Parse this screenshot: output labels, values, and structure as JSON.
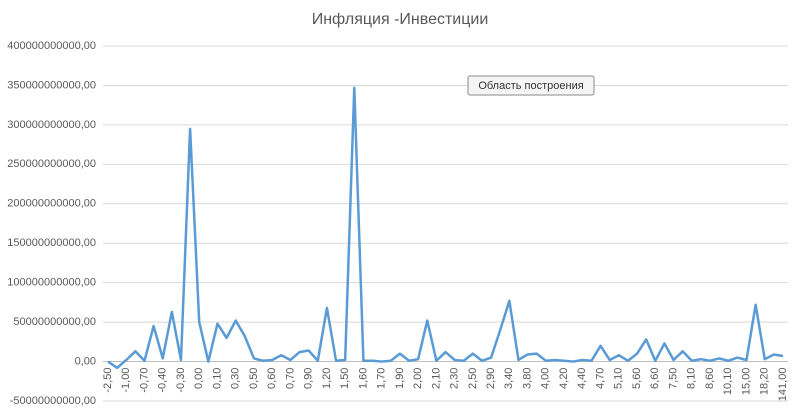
{
  "chart_data": {
    "type": "line",
    "title": "Инфляция -Инвестиции",
    "tooltip": "Область построения",
    "categories": [
      "-2,50",
      null,
      "-1,00",
      null,
      "-0,70",
      null,
      "-0,40",
      null,
      "-0,30",
      null,
      "0,00",
      null,
      "0,10",
      null,
      "0,30",
      null,
      "0,50",
      null,
      "0,60",
      null,
      "0,70",
      null,
      "0,90",
      null,
      "1,20",
      null,
      "1,50",
      null,
      "1,60",
      null,
      "1,70",
      null,
      "1,90",
      null,
      "2,00",
      null,
      "2,10",
      null,
      "2,30",
      null,
      "2,50",
      null,
      "2,90",
      null,
      "3,40",
      null,
      "3,80",
      null,
      "4,00",
      null,
      "4,20",
      null,
      "4,40",
      null,
      "4,70",
      null,
      "5,10",
      null,
      "5,60",
      null,
      "6,60",
      null,
      "7,50",
      null,
      "8,10",
      null,
      "8,60",
      null,
      "10,10",
      null,
      "15,00",
      null,
      "18,20",
      null,
      "141,00"
    ],
    "values": [
      0,
      -8000000000,
      2000000000,
      13000000000,
      1000000000,
      45000000000,
      4000000000,
      63000000000,
      2000000000,
      295000000000,
      50000000000,
      0,
      48000000000,
      30000000000,
      52000000000,
      32000000000,
      4000000000,
      1000000000,
      2000000000,
      8000000000,
      2000000000,
      12000000000,
      14000000000,
      1000000000,
      68000000000,
      1000000000,
      2000000000,
      347000000000,
      1000000000,
      1000000000,
      0,
      1000000000,
      10000000000,
      1000000000,
      3000000000,
      52000000000,
      1000000000,
      12000000000,
      2000000000,
      1000000000,
      10000000000,
      1000000000,
      5000000000,
      40000000000,
      77000000000,
      2000000000,
      9000000000,
      10000000000,
      1000000000,
      2000000000,
      1000000000,
      0,
      2000000000,
      1000000000,
      20000000000,
      2000000000,
      8000000000,
      1000000000,
      10000000000,
      28000000000,
      1000000000,
      23000000000,
      2000000000,
      13000000000,
      1000000000,
      3000000000,
      1000000000,
      4000000000,
      1000000000,
      5000000000,
      2000000000,
      72000000000,
      3000000000,
      9000000000,
      7000000000
    ],
    "color": "#5b9bd5",
    "ylim": [
      -50000000000,
      400000000000
    ],
    "yticks": [
      {
        "value": -50000000000,
        "label": "-50000000000,00"
      },
      {
        "value": 0,
        "label": "0,00"
      },
      {
        "value": 50000000000,
        "label": "50000000000,00"
      },
      {
        "value": 100000000000,
        "label": "100000000000,00"
      },
      {
        "value": 150000000000,
        "label": "150000000000,00"
      },
      {
        "value": 200000000000,
        "label": "200000000000,00"
      },
      {
        "value": 250000000000,
        "label": "250000000000,00"
      },
      {
        "value": 300000000000,
        "label": "300000000000,00"
      },
      {
        "value": 350000000000,
        "label": "350000000000,00"
      },
      {
        "value": 400000000000,
        "label": "400000000000,00"
      }
    ],
    "grid": true
  }
}
